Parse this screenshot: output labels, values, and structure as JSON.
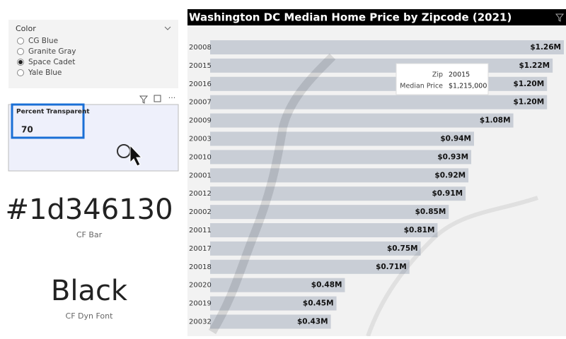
{
  "slicer": {
    "title": "Color",
    "options": [
      "CG Blue",
      "Granite Gray",
      "Space Cadet",
      "Yale Blue"
    ],
    "selected_index": 2
  },
  "input_card": {
    "label": "Percent Transparent",
    "value": "70"
  },
  "cards": [
    {
      "value": "#1d346130",
      "label": "CF Bar"
    },
    {
      "value": "Black",
      "label": "CF Dyn Font"
    }
  ],
  "chart_data": {
    "type": "bar",
    "orientation": "horizontal",
    "title": "Washington DC Median Home Price by Zipcode (2021)",
    "categories": [
      "20008",
      "20015",
      "20016",
      "20007",
      "20009",
      "20003",
      "20010",
      "20001",
      "20012",
      "20002",
      "20011",
      "20017",
      "20018",
      "20020",
      "20019",
      "20032"
    ],
    "values": [
      1.26,
      1.22,
      1.2,
      1.2,
      1.08,
      0.94,
      0.93,
      0.92,
      0.91,
      0.85,
      0.81,
      0.75,
      0.71,
      0.48,
      0.45,
      0.43
    ],
    "value_labels": [
      "$1.26M",
      "$1.22M",
      "$1.20M",
      "$1.20M",
      "$1.08M",
      "$0.94M",
      "$0.93M",
      "$0.92M",
      "$0.91M",
      "$0.85M",
      "$0.81M",
      "$0.75M",
      "$0.71M",
      "$0.48M",
      "$0.45M",
      "$0.43M"
    ],
    "color": "rgba(29,52,97,0.19)",
    "tooltip": {
      "labels": [
        "Zip",
        "Median Price"
      ],
      "values": [
        "20015",
        "$1,215,000"
      ]
    }
  }
}
